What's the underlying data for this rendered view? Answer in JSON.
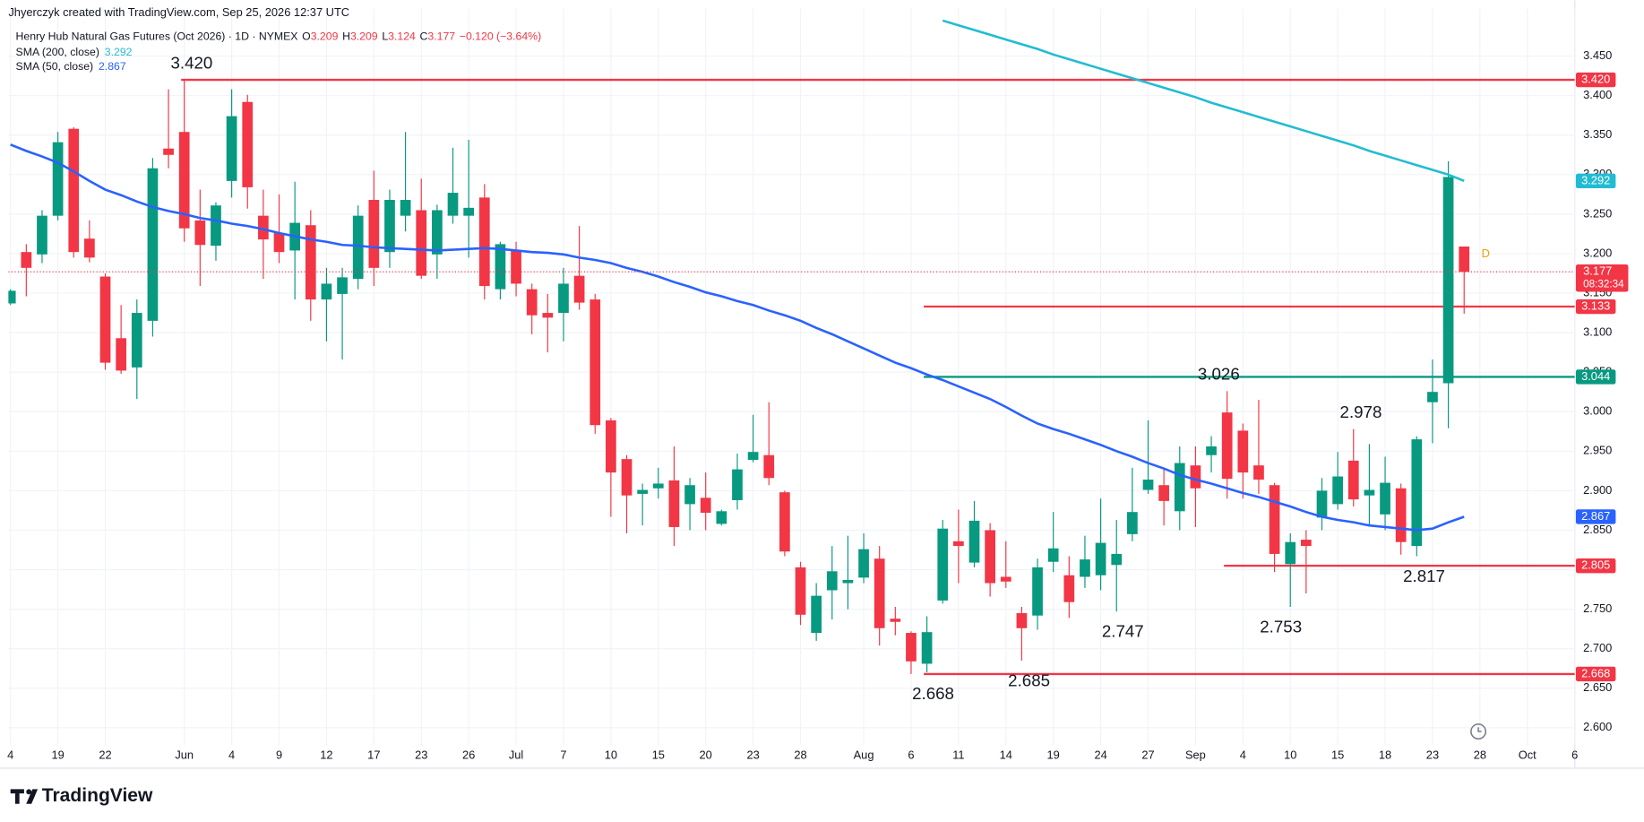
{
  "header": {
    "credit": "Jhyerczyk created with TradingView.com, Sep 25, 2026 12:37 UTC"
  },
  "brand": "TradingView",
  "chart_data": {
    "type": "candlestick",
    "title": "Henry Hub Natural Gas Futures (Oct 2026) · 1D · NYMEX",
    "ohlc": [
      {
        "key": "O",
        "value": 3.209
      },
      {
        "key": "H",
        "value": 3.209
      },
      {
        "key": "L",
        "value": 3.124
      },
      {
        "key": "C",
        "value": 3.177
      }
    ],
    "change": "−0.120 (−3.64%)",
    "up_color": "#089981",
    "down_color": "#f23645",
    "categories": [
      "4",
      null,
      null,
      "19",
      null,
      null,
      "22",
      null,
      null,
      null,
      null,
      "Jun",
      null,
      null,
      "4",
      null,
      null,
      "9",
      null,
      null,
      "12",
      null,
      null,
      "17",
      null,
      null,
      "23",
      null,
      null,
      "26",
      null,
      null,
      "Jul",
      null,
      null,
      "7",
      null,
      null,
      "10",
      null,
      null,
      "15",
      null,
      null,
      "20",
      null,
      null,
      "23",
      null,
      null,
      "28",
      null,
      null,
      null,
      "Aug",
      null,
      null,
      "6",
      null,
      null,
      "11",
      null,
      null,
      "14",
      null,
      null,
      "19",
      null,
      null,
      "24",
      null,
      null,
      "27",
      null,
      null,
      "Sep",
      null,
      null,
      "4",
      null,
      null,
      "10",
      null,
      null,
      "15",
      null,
      null,
      "18",
      null,
      null,
      "23",
      null,
      null,
      "28",
      null,
      null,
      "Oct",
      null,
      null,
      "6"
    ],
    "open": [
      3.137,
      3.202,
      3.199,
      3.248,
      3.358,
      3.219,
      3.171,
      3.093,
      3.056,
      3.115,
      3.333,
      3.354,
      3.242,
      3.21,
      3.292,
      3.392,
      3.248,
      3.226,
      3.204,
      3.236,
      3.142,
      3.149,
      3.168,
      3.268,
      3.202,
      3.248,
      3.255,
      3.199,
      3.248,
      3.248,
      3.271,
      3.155,
      3.204,
      3.155,
      3.125,
      3.125,
      3.172,
      3.142,
      2.989,
      2.94,
      2.896,
      2.903,
      2.913,
      2.883,
      2.891,
      2.858,
      2.888,
      2.939,
      2.945,
      2.898,
      2.803,
      2.72,
      2.774,
      2.783,
      2.79,
      2.814,
      2.738,
      2.72,
      2.681,
      2.761,
      2.836,
      2.809,
      2.85,
      2.791,
      2.745,
      2.742,
      2.81,
      2.793,
      2.791,
      2.793,
      2.806,
      2.845,
      2.901,
      2.907,
      2.874,
      2.932,
      2.945,
      2.999,
      2.976,
      2.932,
      2.907,
      2.807,
      2.838,
      2.866,
      2.883,
      2.938,
      2.894,
      2.87,
      2.903,
      2.83,
      3.012,
      3.036,
      3.209,
      null,
      null,
      null,
      null,
      null,
      null,
      null
    ],
    "high": [
      3.155,
      3.212,
      3.255,
      3.354,
      3.36,
      3.242,
      3.175,
      3.135,
      3.142,
      3.321,
      3.408,
      3.42,
      3.281,
      3.265,
      3.408,
      3.401,
      3.281,
      3.275,
      3.291,
      3.255,
      3.182,
      3.182,
      3.261,
      3.305,
      3.281,
      3.354,
      3.295,
      3.262,
      3.334,
      3.344,
      3.288,
      3.215,
      3.215,
      3.162,
      3.149,
      3.182,
      3.235,
      3.149,
      2.992,
      2.945,
      2.909,
      2.929,
      2.956,
      2.916,
      2.923,
      2.876,
      2.947,
      2.996,
      3.012,
      2.9,
      2.81,
      2.783,
      2.83,
      2.843,
      2.846,
      2.83,
      2.753,
      2.722,
      2.741,
      2.863,
      2.876,
      2.887,
      2.859,
      2.836,
      2.753,
      2.814,
      2.873,
      2.817,
      2.843,
      2.89,
      2.863,
      2.929,
      2.989,
      2.929,
      2.956,
      2.956,
      2.969,
      3.026,
      2.985,
      3.015,
      2.91,
      2.846,
      2.85,
      2.916,
      2.949,
      2.978,
      2.959,
      2.943,
      2.909,
      2.969,
      3.066,
      3.317,
      3.209,
      null,
      null,
      null,
      null,
      null,
      null,
      null
    ],
    "low": [
      3.135,
      3.146,
      3.188,
      3.242,
      3.195,
      3.189,
      3.053,
      3.048,
      3.016,
      3.095,
      3.308,
      3.215,
      3.159,
      3.191,
      3.271,
      3.257,
      3.168,
      3.188,
      3.142,
      3.115,
      3.089,
      3.066,
      3.155,
      3.159,
      3.182,
      3.228,
      3.168,
      3.168,
      3.238,
      3.195,
      3.142,
      3.142,
      3.146,
      3.098,
      3.075,
      3.089,
      3.129,
      2.972,
      2.867,
      2.846,
      2.856,
      2.89,
      2.83,
      2.85,
      2.85,
      2.856,
      2.876,
      2.936,
      2.907,
      2.817,
      2.73,
      2.71,
      2.737,
      2.75,
      2.783,
      2.704,
      2.717,
      2.668,
      2.67,
      2.757,
      2.783,
      2.803,
      2.766,
      2.777,
      2.685,
      2.724,
      2.797,
      2.739,
      2.777,
      2.774,
      2.747,
      2.836,
      2.896,
      2.856,
      2.85,
      2.854,
      2.923,
      2.89,
      2.89,
      2.896,
      2.797,
      2.753,
      2.77,
      2.85,
      2.876,
      2.88,
      2.856,
      2.85,
      2.819,
      2.817,
      2.96,
      2.979,
      3.124,
      null,
      null,
      null,
      null,
      null,
      null,
      null
    ],
    "close": [
      3.153,
      3.182,
      3.248,
      3.341,
      3.202,
      3.195,
      3.062,
      3.052,
      3.125,
      3.308,
      3.325,
      3.232,
      3.211,
      3.261,
      3.374,
      3.284,
      3.218,
      3.202,
      3.239,
      3.142,
      3.162,
      3.17,
      3.248,
      3.182,
      3.268,
      3.268,
      3.172,
      3.255,
      3.277,
      3.258,
      3.159,
      3.212,
      3.162,
      3.122,
      3.119,
      3.162,
      3.138,
      2.983,
      2.923,
      2.894,
      2.901,
      2.909,
      2.854,
      2.907,
      2.872,
      2.874,
      2.927,
      2.949,
      2.916,
      2.823,
      2.743,
      2.767,
      2.798,
      2.787,
      2.826,
      2.726,
      2.734,
      2.684,
      2.721,
      2.852,
      2.83,
      2.862,
      2.783,
      2.785,
      2.726,
      2.803,
      2.827,
      2.759,
      2.813,
      2.834,
      2.82,
      2.873,
      2.914,
      2.887,
      2.935,
      2.903,
      2.956,
      2.915,
      2.923,
      2.914,
      2.82,
      2.835,
      2.83,
      2.9,
      2.918,
      2.889,
      2.901,
      2.91,
      2.835,
      2.965,
      3.025,
      3.297,
      3.177,
      null,
      null,
      null,
      null,
      null,
      null,
      null
    ],
    "overlays": [
      {
        "name": "SMA (200, close)",
        "color": "#22bcd2",
        "values": [
          null,
          null,
          null,
          null,
          null,
          null,
          null,
          null,
          null,
          null,
          null,
          null,
          null,
          null,
          null,
          null,
          null,
          null,
          null,
          null,
          null,
          null,
          null,
          null,
          null,
          null,
          null,
          null,
          null,
          null,
          null,
          null,
          null,
          null,
          null,
          null,
          null,
          null,
          null,
          null,
          null,
          null,
          null,
          null,
          null,
          null,
          null,
          null,
          null,
          null,
          null,
          null,
          null,
          null,
          null,
          null,
          null,
          null,
          null,
          3.495,
          3.489,
          3.483,
          3.477,
          3.471,
          3.465,
          3.459,
          3.452,
          3.446,
          3.44,
          3.434,
          3.428,
          3.422,
          3.416,
          3.41,
          3.404,
          3.398,
          3.391,
          3.385,
          3.379,
          3.373,
          3.367,
          3.361,
          3.355,
          3.349,
          3.343,
          3.337,
          3.33,
          3.324,
          3.318,
          3.312,
          3.306,
          3.3,
          3.292,
          null,
          null,
          null,
          null,
          null,
          null,
          null
        ]
      },
      {
        "name": "SMA (50, close)",
        "color": "#2962ff",
        "values": [
          3.338,
          3.33,
          3.323,
          3.315,
          3.304,
          3.292,
          3.281,
          3.274,
          3.266,
          3.259,
          3.254,
          3.25,
          3.245,
          3.242,
          3.238,
          3.235,
          3.231,
          3.226,
          3.222,
          3.218,
          3.215,
          3.211,
          3.21,
          3.208,
          3.207,
          3.206,
          3.205,
          3.204,
          3.205,
          3.206,
          3.207,
          3.206,
          3.204,
          3.202,
          3.201,
          3.199,
          3.195,
          3.192,
          3.188,
          3.182,
          3.177,
          3.171,
          3.164,
          3.158,
          3.151,
          3.146,
          3.14,
          3.135,
          3.128,
          3.122,
          3.115,
          3.106,
          3.098,
          3.089,
          3.08,
          3.071,
          3.062,
          3.055,
          3.047,
          3.04,
          3.032,
          3.024,
          3.016,
          3.006,
          2.995,
          2.985,
          2.978,
          2.972,
          2.965,
          2.958,
          2.95,
          2.943,
          2.935,
          2.928,
          2.92,
          2.914,
          2.909,
          2.903,
          2.897,
          2.892,
          2.886,
          2.88,
          2.873,
          2.867,
          2.863,
          2.86,
          2.856,
          2.854,
          2.852,
          2.85,
          2.852,
          2.86,
          2.867,
          null,
          null,
          null,
          null,
          null,
          null,
          null
        ]
      }
    ],
    "levels": [
      {
        "value": 3.42,
        "label": "3.420",
        "color": "#f23645"
      },
      {
        "value": 3.133,
        "label": "3.133",
        "color": "#f23645"
      },
      {
        "value": 3.044,
        "label": "3.044",
        "color": "#089981"
      },
      {
        "value": 2.805,
        "label": "2.805",
        "color": "#f23645"
      },
      {
        "value": 2.668,
        "label": "2.668",
        "color": "#f23645"
      }
    ],
    "annotations": [
      {
        "value": 3.42,
        "label": "3.420"
      },
      {
        "value": 2.668,
        "label": "2.668"
      },
      {
        "value": 2.685,
        "label": "2.685"
      },
      {
        "value": 2.747,
        "label": "2.747"
      },
      {
        "value": 3.026,
        "label": "3.026"
      },
      {
        "value": 2.753,
        "label": "2.753"
      },
      {
        "value": 2.978,
        "label": "2.978"
      },
      {
        "value": 2.817,
        "label": "2.817"
      }
    ],
    "countdown": "08:32:34",
    "marker": "D",
    "ylim": [
      2.578,
      3.51
    ],
    "yticks": [
      {
        "value": 2.6,
        "label": "2.600"
      },
      {
        "value": 2.65,
        "label": "2.650"
      },
      {
        "value": 2.7,
        "label": "2.700"
      },
      {
        "value": 2.75,
        "label": "2.750"
      },
      {
        "value": 2.8,
        "label": "2.800"
      },
      {
        "value": 2.85,
        "label": "2.850"
      },
      {
        "value": 2.9,
        "label": "2.900"
      },
      {
        "value": 2.95,
        "label": "2.950"
      },
      {
        "value": 3.0,
        "label": "3.000"
      },
      {
        "value": 3.05,
        "label": "3.050"
      },
      {
        "value": 3.1,
        "label": "3.100"
      },
      {
        "value": 3.15,
        "label": "3.150"
      },
      {
        "value": 3.2,
        "label": "3.200"
      },
      {
        "value": 3.25,
        "label": "3.250"
      },
      {
        "value": 3.3,
        "label": "3.300"
      },
      {
        "value": 3.35,
        "label": "3.350"
      },
      {
        "value": 3.4,
        "label": "3.400"
      },
      {
        "value": 3.45,
        "label": "3.450"
      }
    ],
    "grid": true
  }
}
